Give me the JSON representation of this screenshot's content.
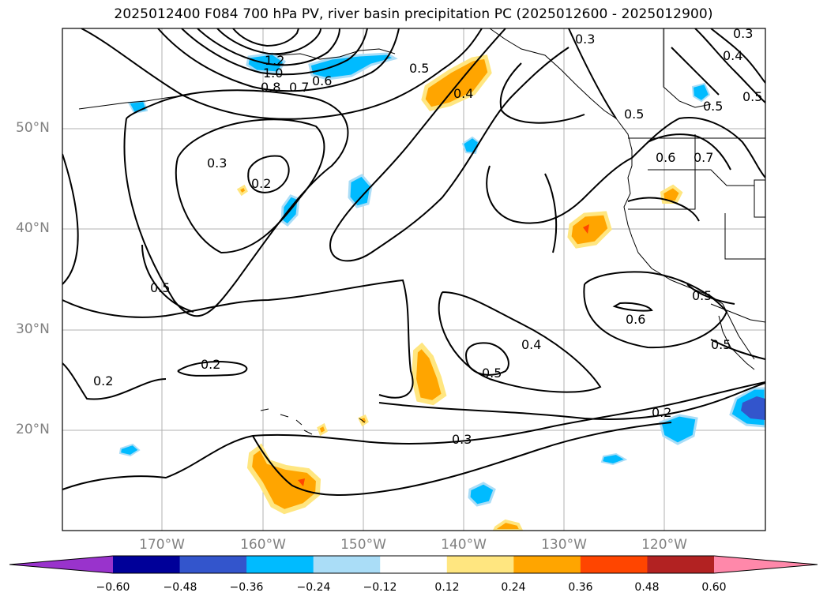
{
  "title": "2025012400 F084 700 hPa PV, river basin precipitation PC (2025012600 - 2025012900)",
  "latitude_labels": [
    "50°N",
    "40°N",
    "30°N",
    "20°N"
  ],
  "longitude_labels": [
    "170°W",
    "160°W",
    "150°W",
    "140°W",
    "130°W",
    "120°W"
  ],
  "colorbar": {
    "tick_labels": [
      "−0.60",
      "−0.48",
      "−0.36",
      "−0.24",
      "−0.12",
      "0.12",
      "0.24",
      "0.36",
      "0.48",
      "0.60"
    ],
    "colors": [
      "#9933cc",
      "#000099",
      "#3355cc",
      "#00bbff",
      "#aaddf7",
      "#ffffff",
      "#ffe680",
      "#ffa500",
      "#ff4500",
      "#b22222",
      "#ff88aa"
    ]
  },
  "contour_labels": [
    "1.2",
    "1.0",
    "0.8",
    "0.7",
    "0.6",
    "0.5",
    "0.4",
    "0.3",
    "0.5",
    "0.3",
    "0.2",
    "0.5",
    "0.2",
    "0.2",
    "0.3",
    "0.5",
    "0.4",
    "0.6",
    "0.5",
    "0.2",
    "0.5",
    "0.6",
    "0.7",
    "0.5",
    "0.4",
    "0.5",
    "0.3"
  ]
}
